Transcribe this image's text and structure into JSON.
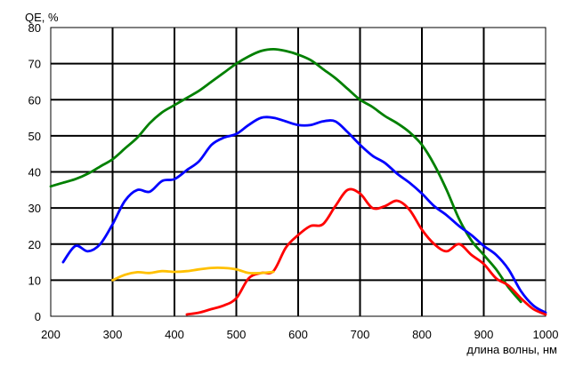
{
  "chart_data": {
    "type": "line",
    "title": "",
    "ylabel": "QE, %",
    "xlabel": "длина волны, нм",
    "xlim": [
      200,
      1000
    ],
    "ylim": [
      0,
      80
    ],
    "xticks": [
      200,
      300,
      400,
      500,
      600,
      700,
      800,
      900,
      1000
    ],
    "yticks": [
      0,
      10,
      20,
      30,
      40,
      50,
      60,
      70,
      80
    ],
    "grid": true,
    "legend": "none",
    "series": [
      {
        "color": "#008000",
        "x": [
          200,
          220,
          240,
          260,
          280,
          300,
          320,
          340,
          360,
          380,
          400,
          420,
          440,
          460,
          480,
          500,
          520,
          540,
          560,
          580,
          600,
          620,
          640,
          660,
          680,
          700,
          720,
          740,
          760,
          780,
          800,
          820,
          840,
          860,
          880,
          900,
          920,
          940,
          960
        ],
        "y": [
          36,
          37,
          38,
          39.5,
          41.5,
          43.5,
          46.5,
          49.5,
          53.5,
          56.5,
          58.5,
          60.5,
          62.5,
          65,
          67.5,
          70,
          72,
          73.5,
          74,
          73.5,
          72.5,
          71,
          68.5,
          66,
          63,
          60,
          58,
          55.5,
          53.5,
          51,
          47.5,
          42,
          35,
          27,
          21,
          17,
          13,
          8,
          4
        ]
      },
      {
        "color": "#0000ff",
        "x": [
          220,
          240,
          260,
          280,
          300,
          320,
          340,
          360,
          380,
          400,
          420,
          440,
          460,
          480,
          500,
          520,
          540,
          560,
          580,
          600,
          620,
          640,
          660,
          680,
          700,
          720,
          740,
          760,
          780,
          800,
          820,
          840,
          860,
          880,
          900,
          920,
          940,
          960,
          980,
          1000
        ],
        "y": [
          15,
          19.5,
          18,
          20,
          25.5,
          32,
          35,
          34.5,
          37.5,
          38,
          40.5,
          43,
          47.5,
          49.5,
          50.5,
          53,
          55,
          55,
          54,
          53,
          53,
          54,
          54,
          51,
          47.5,
          44.5,
          42.5,
          39.5,
          37,
          34,
          30.5,
          28,
          25,
          22.5,
          19.5,
          17,
          13,
          7,
          3,
          1
        ]
      },
      {
        "color": "#ff0000",
        "x": [
          420,
          440,
          460,
          480,
          500,
          520,
          540,
          560,
          580,
          600,
          620,
          640,
          660,
          680,
          700,
          720,
          740,
          760,
          780,
          800,
          820,
          840,
          860,
          880,
          900,
          920,
          940,
          960,
          980,
          1000
        ],
        "y": [
          0.5,
          1,
          2,
          3,
          5,
          10.5,
          12,
          12.5,
          19,
          22.5,
          25,
          25.5,
          30.5,
          35,
          34,
          30,
          30.5,
          32,
          29.5,
          24,
          20,
          18,
          20,
          17,
          14.5,
          10.5,
          8.5,
          5,
          2,
          0.5
        ]
      },
      {
        "color": "#ffc000",
        "x": [
          300,
          320,
          340,
          360,
          380,
          400,
          420,
          440,
          460,
          480,
          500,
          520,
          540,
          560
        ],
        "y": [
          10,
          11.5,
          12.2,
          12,
          12.5,
          12.3,
          12.5,
          13,
          13.4,
          13.4,
          13,
          12,
          12,
          12.3
        ]
      }
    ]
  }
}
